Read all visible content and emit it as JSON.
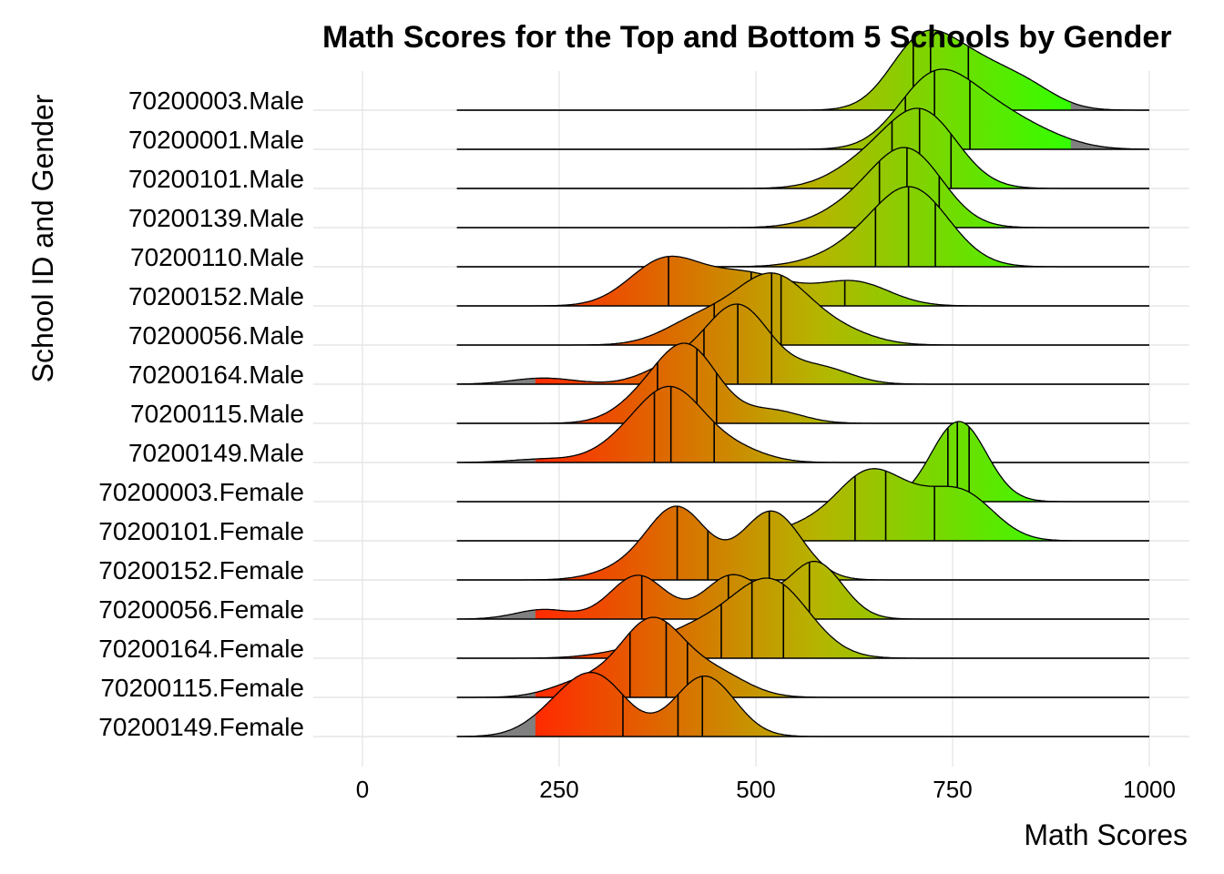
{
  "chart_data": {
    "type": "area",
    "subtype": "ridgeline-density",
    "title": "Math Scores for the Top and Bottom 5 Schools by Gender",
    "xlabel": "Math Scores",
    "ylabel": "School ID and Gender",
    "xlim": [
      0,
      1000
    ],
    "xticks": [
      0,
      250,
      500,
      750,
      1000
    ],
    "grid": true,
    "legend": "none",
    "fill_gradient": {
      "low": "#ff2a00",
      "mid": "#b5b500",
      "high": "#33ff00",
      "na": "#808080",
      "range": [
        220,
        900
      ]
    },
    "series": [
      {
        "name": "70200003.Male",
        "range": [
          120,
          1000
        ],
        "quartiles": [
          700,
          722,
          770
        ],
        "peaks": [
          [
            710,
            1.0
          ],
          [
            775,
            0.55
          ],
          [
            840,
            0.36
          ]
        ],
        "spread": 40
      },
      {
        "name": "70200001.Male",
        "range": [
          120,
          1000
        ],
        "quartiles": [
          690,
          727,
          772
        ],
        "peaks": [
          [
            725,
            1.0
          ],
          [
            795,
            0.45
          ],
          [
            860,
            0.18
          ]
        ],
        "spread": 45
      },
      {
        "name": "70200101.Male",
        "range": [
          120,
          1000
        ],
        "quartiles": [
          673,
          708,
          748
        ],
        "peaks": [
          [
            712,
            1.0
          ],
          [
            640,
            0.3
          ]
        ],
        "spread": 45
      },
      {
        "name": "70200139.Male",
        "range": [
          120,
          1000
        ],
        "quartiles": [
          657,
          692,
          733
        ],
        "peaks": [
          [
            693,
            1.0
          ],
          [
            620,
            0.22
          ]
        ],
        "spread": 45
      },
      {
        "name": "70200110.Male",
        "range": [
          120,
          1000
        ],
        "quartiles": [
          652,
          694,
          728
        ],
        "peaks": [
          [
            698,
            1.0
          ],
          [
            620,
            0.18
          ]
        ],
        "spread": 48
      },
      {
        "name": "70200152.Male",
        "range": [
          120,
          1000
        ],
        "quartiles": [
          389,
          494,
          613
        ],
        "peaks": [
          [
            385,
            0.62
          ],
          [
            475,
            0.32
          ],
          [
            625,
            0.32
          ],
          [
            530,
            0.18
          ]
        ],
        "spread": 45
      },
      {
        "name": "70200056.Male",
        "range": [
          120,
          1000
        ],
        "quartiles": [
          447,
          520,
          532
        ],
        "peaks": [
          [
            520,
            0.9
          ],
          [
            430,
            0.35
          ],
          [
            600,
            0.2
          ]
        ],
        "spread": 45
      },
      {
        "name": "70200164.Male",
        "range": [
          120,
          1000
        ],
        "quartiles": [
          434,
          477,
          520
        ],
        "peaks": [
          [
            478,
            1.0
          ],
          [
            400,
            0.25
          ],
          [
            580,
            0.22
          ],
          [
            230,
            0.08
          ]
        ],
        "spread": 40
      },
      {
        "name": "70200115.Male",
        "range": [
          120,
          1000
        ],
        "quartiles": [
          375,
          425,
          450
        ],
        "peaks": [
          [
            415,
            1.0
          ],
          [
            360,
            0.3
          ],
          [
            520,
            0.18
          ]
        ],
        "spread": 38
      },
      {
        "name": "70200149.Male",
        "range": [
          120,
          1000
        ],
        "quartiles": [
          371,
          392,
          447
        ],
        "peaks": [
          [
            395,
            0.95
          ],
          [
            340,
            0.3
          ],
          [
            470,
            0.2
          ],
          [
            230,
            0.05
          ]
        ],
        "spread": 40
      },
      {
        "name": "70200003.Female",
        "range": [
          120,
          1000
        ],
        "quartiles": [
          744,
          756,
          771
        ],
        "peaks": [
          [
            758,
            1.0
          ]
        ],
        "spread": 35
      },
      {
        "name": "70200101.Female",
        "range": [
          120,
          1000
        ],
        "quartiles": [
          626,
          665,
          727
        ],
        "peaks": [
          [
            640,
            0.9
          ],
          [
            765,
            0.65
          ],
          [
            700,
            0.4
          ],
          [
            560,
            0.2
          ]
        ],
        "spread": 40
      },
      {
        "name": "70200152.Female",
        "range": [
          120,
          1000
        ],
        "quartiles": [
          400,
          439,
          517
        ],
        "peaks": [
          [
            400,
            0.92
          ],
          [
            520,
            0.88
          ],
          [
            330,
            0.12
          ]
        ],
        "spread": 38
      },
      {
        "name": "70200056.Female",
        "range": [
          120,
          1000
        ],
        "quartiles": [
          355,
          465,
          568
        ],
        "peaks": [
          [
            350,
            0.55
          ],
          [
            470,
            0.55
          ],
          [
            575,
            0.72
          ],
          [
            230,
            0.12
          ]
        ],
        "spread": 35
      },
      {
        "name": "70200164.Female",
        "range": [
          120,
          1000
        ],
        "quartiles": [
          456,
          495,
          535
        ],
        "peaks": [
          [
            520,
            1.0
          ],
          [
            430,
            0.35
          ],
          [
            350,
            0.1
          ]
        ],
        "spread": 48
      },
      {
        "name": "70200115.Female",
        "range": [
          120,
          1000
        ],
        "quartiles": [
          340,
          386,
          413
        ],
        "peaks": [
          [
            368,
            1.0
          ],
          [
            450,
            0.3
          ],
          [
            280,
            0.2
          ]
        ],
        "spread": 40
      },
      {
        "name": "70200149.Female",
        "range": [
          120,
          1000
        ],
        "quartiles": [
          331,
          401,
          432
        ],
        "peaks": [
          [
            300,
            0.7
          ],
          [
            435,
            0.8
          ],
          [
            250,
            0.3
          ]
        ],
        "spread": 38
      }
    ]
  }
}
